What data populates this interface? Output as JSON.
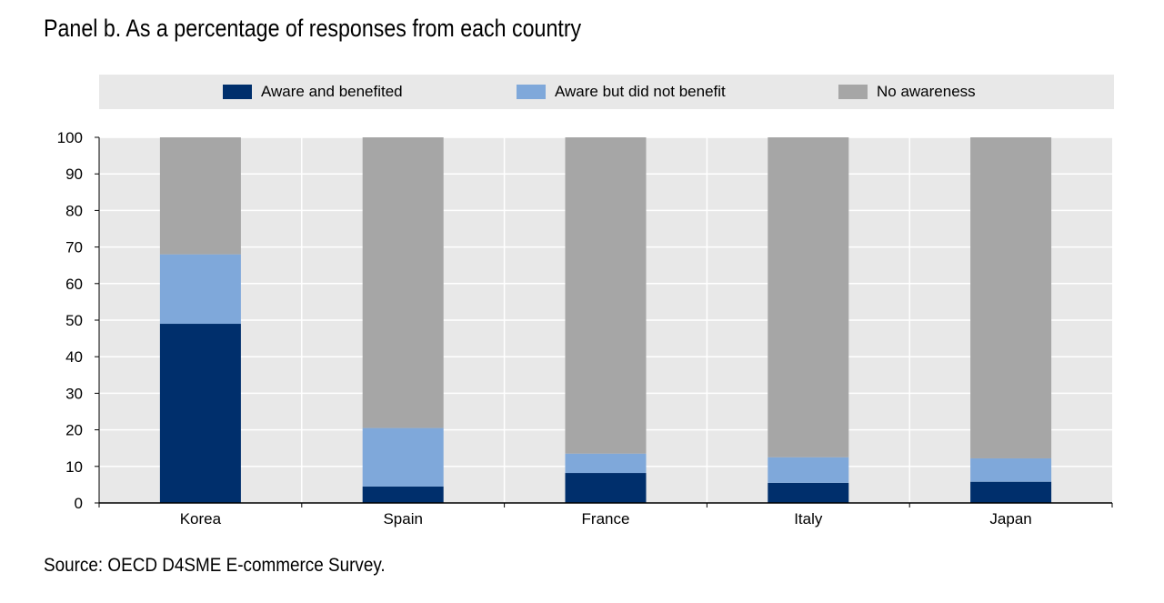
{
  "title": "Panel b. As a percentage of responses from each country",
  "source": "Source: OECD D4SME E-commerce Survey.",
  "colors": {
    "aware_benefited": "#002f6c",
    "aware_not_benefit": "#7fa8da",
    "no_awareness": "#a6a6a6",
    "legend_bg": "#e8e8e8",
    "plot_bg": "#e8e8e8",
    "grid": "#ffffff"
  },
  "chart_data": {
    "type": "bar",
    "stacked": true,
    "categories": [
      "Korea",
      "Spain",
      "France",
      "Italy",
      "Japan"
    ],
    "series": [
      {
        "name": "Aware and benefited",
        "values": [
          49,
          4.5,
          8.2,
          5.5,
          5.8
        ]
      },
      {
        "name": "Aware but did not benefit",
        "values": [
          19,
          16,
          5.3,
          7,
          6.4
        ]
      },
      {
        "name": "No awareness",
        "values": [
          32,
          79.5,
          86.5,
          87.5,
          87.8
        ]
      }
    ],
    "ylim": [
      0,
      100
    ],
    "yticks": [
      0,
      10,
      20,
      30,
      40,
      50,
      60,
      70,
      80,
      90,
      100
    ],
    "grid": true,
    "legend_position": "top"
  }
}
